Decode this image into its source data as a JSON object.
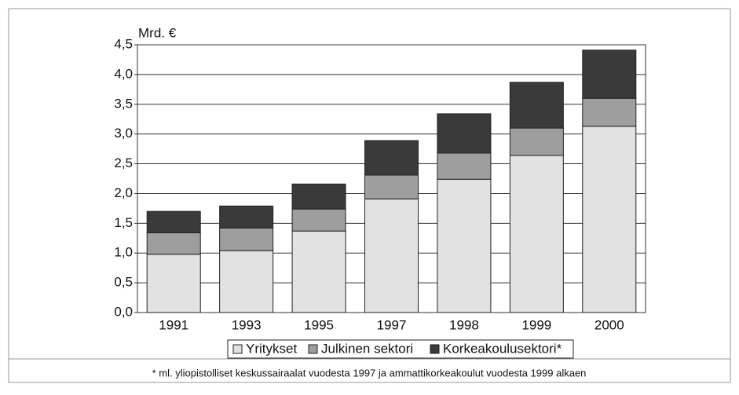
{
  "chart_data": {
    "type": "stacked_bar",
    "y_label": "Mrd. €",
    "categories": [
      "1991",
      "1993",
      "1995",
      "1997",
      "1998",
      "1999",
      "2000"
    ],
    "series": [
      {
        "name": "Yritykset",
        "color": "#e2e2e2",
        "values": [
          0.98,
          1.04,
          1.37,
          1.91,
          2.24,
          2.64,
          3.13
        ]
      },
      {
        "name": "Julkinen sektori",
        "color": "#9e9e9e",
        "values": [
          0.36,
          0.38,
          0.37,
          0.4,
          0.44,
          0.46,
          0.47
        ]
      },
      {
        "name": "Korkeakoulusektori*",
        "color": "#3a3a3a",
        "values": [
          0.36,
          0.37,
          0.42,
          0.58,
          0.66,
          0.77,
          0.81
        ]
      }
    ],
    "ylim": [
      0,
      4.5
    ],
    "yticks": [
      {
        "value": 0,
        "label": "0,0"
      },
      {
        "value": 0.5,
        "label": "0,5"
      },
      {
        "value": 1,
        "label": "1,0"
      },
      {
        "value": 1.5,
        "label": "1,5"
      },
      {
        "value": 2,
        "label": "2,0"
      },
      {
        "value": 2.5,
        "label": "2,5"
      },
      {
        "value": 3,
        "label": "3,0"
      },
      {
        "value": 3.5,
        "label": "3,5"
      },
      {
        "value": 4,
        "label": "4,0"
      },
      {
        "value": 4.5,
        "label": "4,5"
      }
    ],
    "grid": true,
    "footnote": "* ml. yliopistolliset keskussairaalat vuodesta 1997 ja ammattikorkeakoulut vuodesta 1999 alkaen"
  }
}
